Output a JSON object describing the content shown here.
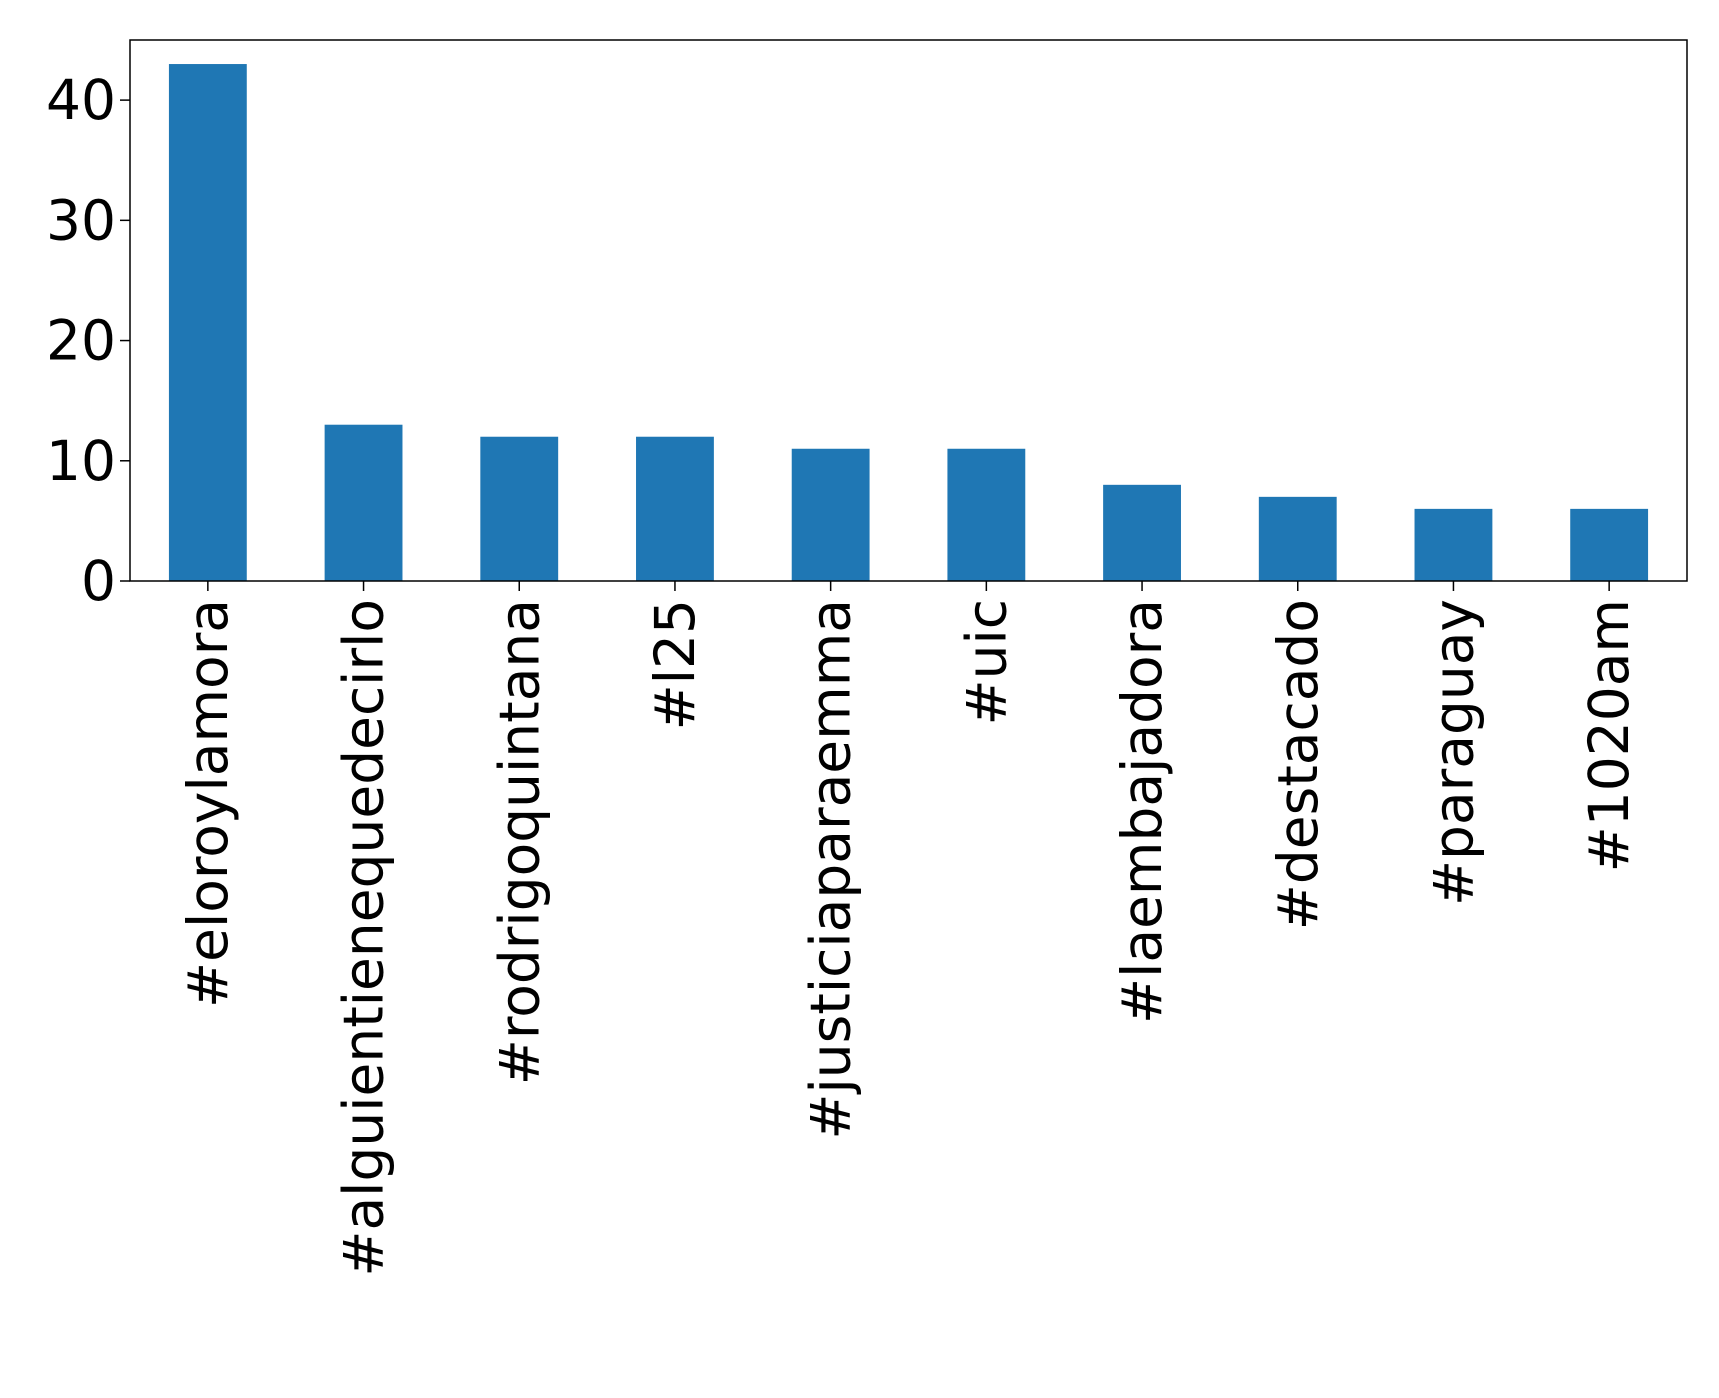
{
  "chart_data": {
    "type": "bar",
    "categories": [
      "#eloroylamora",
      "#alguientienequedecirlo",
      "#rodrigoquintana",
      "#l25",
      "#justiciaparaemma",
      "#uic",
      "#laembajadora",
      "#destacado",
      "#paraguay",
      "#1020am"
    ],
    "values": [
      43,
      13,
      12,
      12,
      11,
      11,
      8,
      7,
      6,
      6
    ],
    "color": "#1f77b4",
    "ylim": [
      0,
      45
    ],
    "yticks": [
      0,
      10,
      20,
      30,
      40
    ],
    "grid": false
  }
}
